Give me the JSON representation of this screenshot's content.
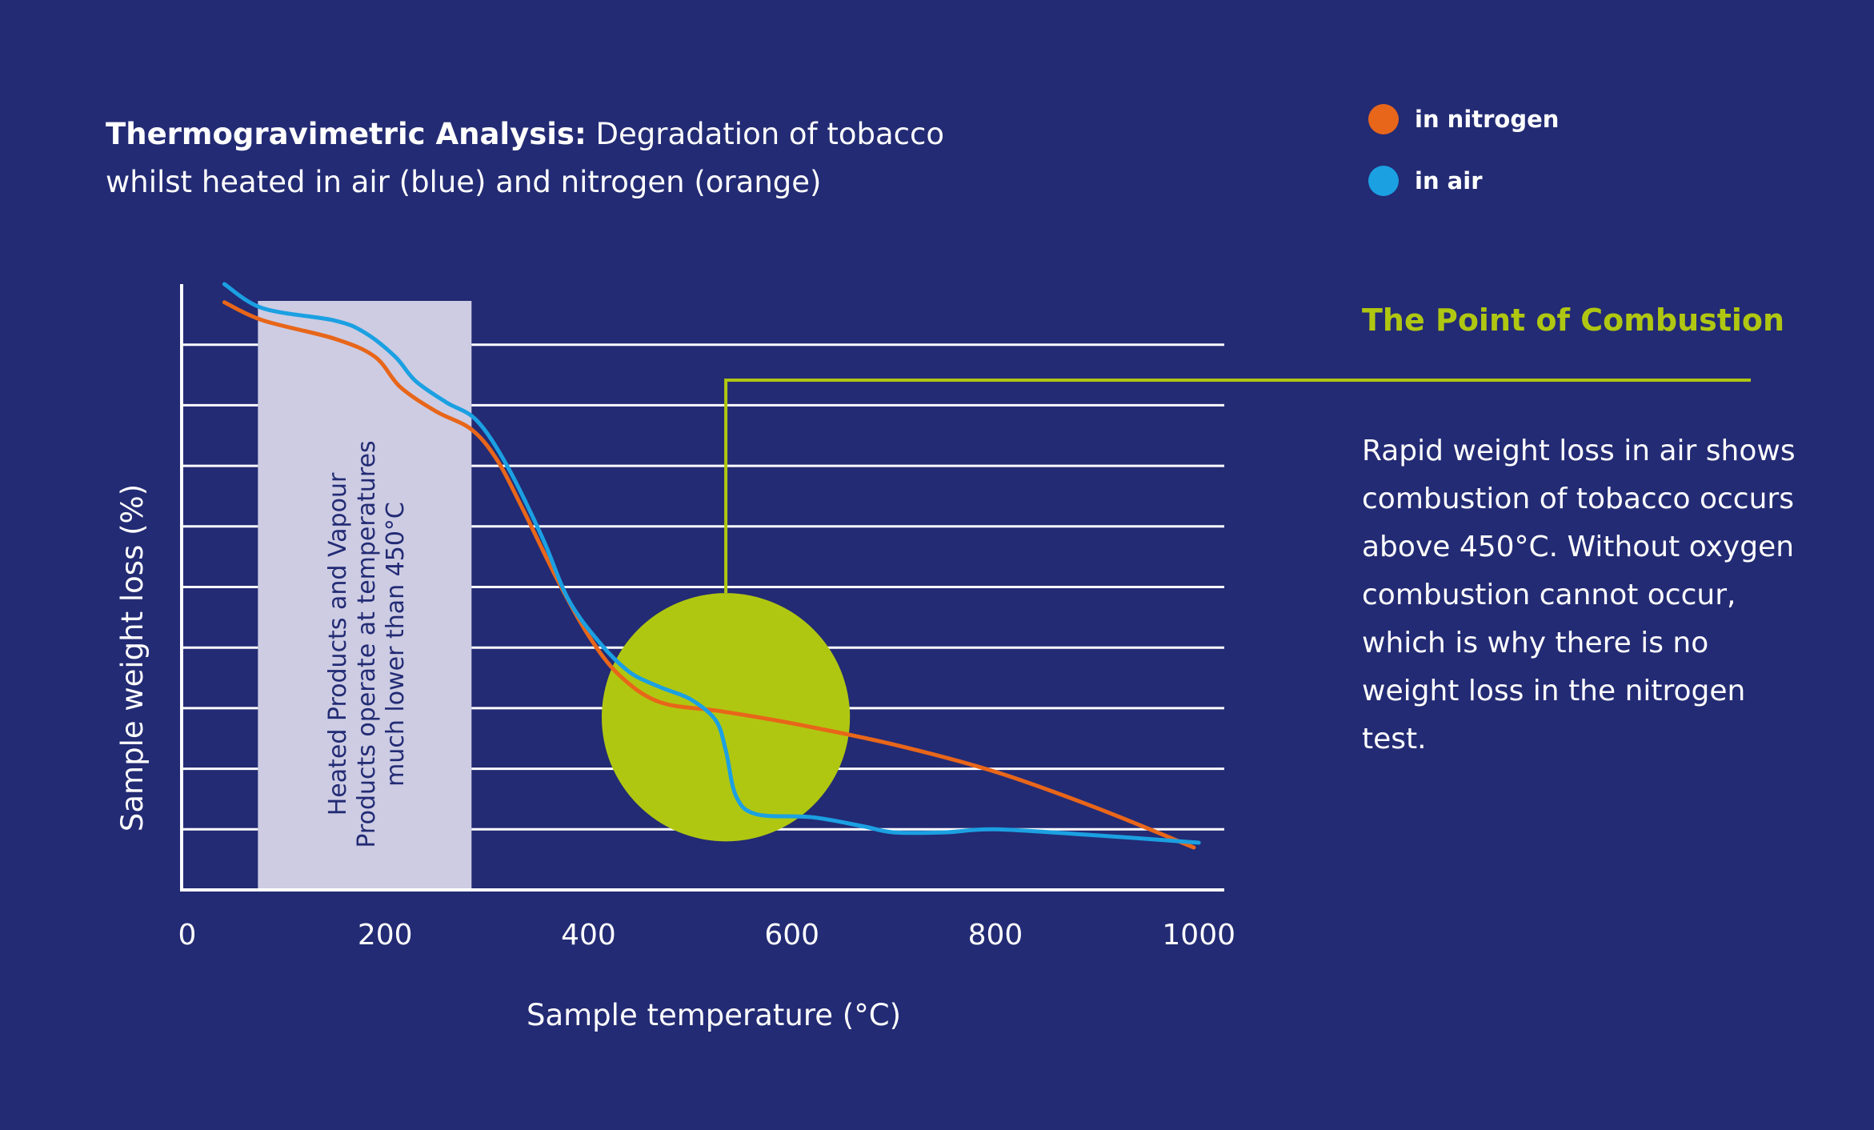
{
  "title": {
    "bold": "Thermogravimetric Analysis:",
    "rest": " Degradation of tobacco whilst heated in air (blue) and nitrogen (orange)"
  },
  "legend": [
    {
      "label": "in nitrogen",
      "color": "#E8661A"
    },
    {
      "label": "in air",
      "color": "#1BA0E2"
    }
  ],
  "colors": {
    "background": "#232B74",
    "band": "#CDCCE3",
    "accent": "#B0C711",
    "nitrogen": "#E8661A",
    "air": "#1BA0E2"
  },
  "annotation": {
    "point_title": "The Point of Combustion",
    "description": "Rapid weight loss in air shows combustion of tobacco occurs above 450°C. Without oxygen combustion cannot occur, which is why there is no weight loss in the nitrogen test.",
    "band_lines": [
      "Heated Products and Vapour",
      "Products operate at temperatures",
      "much lower than 450°C"
    ]
  },
  "chart_data": {
    "type": "line",
    "title": "Thermogravimetric Analysis: Degradation of tobacco whilst heated in air (blue) and nitrogen (orange)",
    "xlabel": "Sample temperature (°C)",
    "ylabel": "Sample weight loss (%)",
    "xlim": [
      0,
      1025
    ],
    "ylim": [
      0,
      10
    ],
    "xticks": [
      0,
      200,
      400,
      600,
      800,
      1000
    ],
    "y_gridlines": [
      1,
      2,
      3,
      4,
      5,
      6,
      7,
      8,
      9
    ],
    "grid": true,
    "legend_position": "top-right",
    "highlight_band": {
      "x_from": 75,
      "x_to": 285
    },
    "combustion_point": {
      "x": 535,
      "y": 2.85,
      "radius_x": 122
    },
    "series": [
      {
        "name": "in nitrogen",
        "color": "#E8661A",
        "points": [
          [
            42,
            9.7
          ],
          [
            80,
            9.4
          ],
          [
            150,
            9.1
          ],
          [
            190,
            8.8
          ],
          [
            215,
            8.3
          ],
          [
            250,
            7.9
          ],
          [
            285,
            7.6
          ],
          [
            310,
            7.1
          ],
          [
            335,
            6.3
          ],
          [
            370,
            5.1
          ],
          [
            400,
            4.2
          ],
          [
            430,
            3.55
          ],
          [
            470,
            3.1
          ],
          [
            530,
            2.95
          ],
          [
            600,
            2.75
          ],
          [
            700,
            2.4
          ],
          [
            800,
            1.95
          ],
          [
            900,
            1.35
          ],
          [
            995,
            0.7
          ]
        ]
      },
      {
        "name": "in air",
        "color": "#1BA0E2",
        "points": [
          [
            42,
            10.0
          ],
          [
            80,
            9.6
          ],
          [
            150,
            9.4
          ],
          [
            180,
            9.2
          ],
          [
            210,
            8.8
          ],
          [
            230,
            8.4
          ],
          [
            260,
            8.05
          ],
          [
            290,
            7.75
          ],
          [
            320,
            7.0
          ],
          [
            355,
            5.8
          ],
          [
            380,
            4.8
          ],
          [
            410,
            4.1
          ],
          [
            440,
            3.6
          ],
          [
            470,
            3.35
          ],
          [
            500,
            3.15
          ],
          [
            525,
            2.8
          ],
          [
            535,
            2.3
          ],
          [
            545,
            1.55
          ],
          [
            565,
            1.25
          ],
          [
            620,
            1.2
          ],
          [
            670,
            1.05
          ],
          [
            700,
            0.95
          ],
          [
            750,
            0.95
          ],
          [
            800,
            1.0
          ],
          [
            900,
            0.9
          ],
          [
            1000,
            0.78
          ]
        ]
      }
    ]
  }
}
